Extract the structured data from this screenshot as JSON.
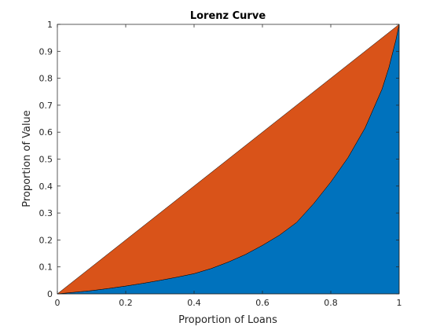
{
  "chart_data": {
    "type": "area",
    "title": "Lorenz Curve",
    "xlabel": "Proportion of Loans",
    "ylabel": "Proportion of Value",
    "xlim": [
      0,
      1
    ],
    "ylim": [
      0,
      1
    ],
    "xticks": [
      "0",
      "0.2",
      "0.4",
      "0.6",
      "0.8",
      "1"
    ],
    "yticks": [
      "0",
      "0.1",
      "0.2",
      "0.3",
      "0.4",
      "0.5",
      "0.6",
      "0.7",
      "0.8",
      "0.9",
      "1"
    ],
    "grid": false,
    "legend": "none",
    "series": [
      {
        "color": "#0072bd",
        "x": [
          0,
          0.05,
          0.1,
          0.15,
          0.2,
          0.25,
          0.3,
          0.35,
          0.4,
          0.45,
          0.5,
          0.55,
          0.6,
          0.65,
          0.7,
          0.75,
          0.8,
          0.85,
          0.9,
          0.95,
          0.97,
          0.99,
          1
        ],
        "y": [
          0,
          0.006,
          0.012,
          0.02,
          0.029,
          0.039,
          0.05,
          0.062,
          0.075,
          0.094,
          0.118,
          0.146,
          0.18,
          0.218,
          0.265,
          0.335,
          0.415,
          0.505,
          0.615,
          0.76,
          0.84,
          0.94,
          1
        ]
      },
      {
        "color": "#d95319",
        "x": [
          0,
          1
        ],
        "y": [
          0,
          1
        ]
      }
    ]
  }
}
